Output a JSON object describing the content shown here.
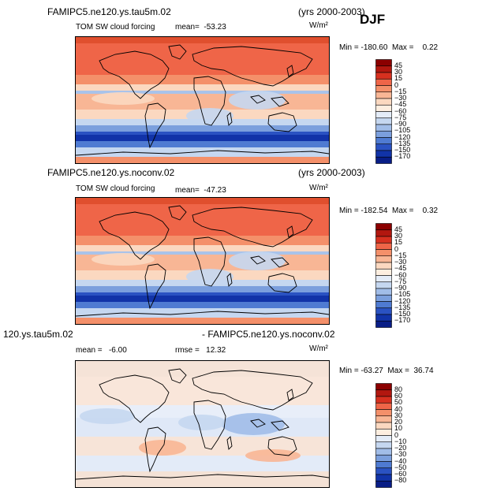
{
  "season": "DJF",
  "panels": [
    {
      "title_left": "FAMIPC5.ne120.ys.tau5m.02",
      "title_right": "(yrs 2000-2003)",
      "subtitle": "TOM SW cloud forcing",
      "stat1": "mean=  -53.23",
      "stat2": "",
      "units": "W/m²",
      "minmax": "Min = -180.60  Max =    0.22",
      "colorbar_labels": [
        "45",
        "30",
        "15",
        "0",
        "−15",
        "−30",
        "−45",
        "−60",
        "−75",
        "−90",
        "−105",
        "−120",
        "−135",
        "−150",
        "−170"
      ],
      "colorbar_colors": [
        "#8b0000",
        "#b2170f",
        "#d7301f",
        "#ef6548",
        "#f4906a",
        "#f8b695",
        "#fbd8c0",
        "#fdeee0",
        "#e4ecf8",
        "#c5d7f0",
        "#a1bde8",
        "#7b9fdd",
        "#4f7bd2",
        "#2a52c2",
        "#1133a8",
        "#081d86"
      ],
      "chart_data": {
        "type": "heatmap",
        "title": "TOM SW cloud forcing",
        "units": "W/m²",
        "mean": -53.23,
        "min": -180.6,
        "max": 0.22,
        "levels": [
          45,
          30,
          15,
          0,
          -15,
          -30,
          -45,
          -60,
          -75,
          -90,
          -105,
          -120,
          -135,
          -150,
          -170
        ]
      }
    },
    {
      "title_left": "FAMIPC5.ne120.ys.noconv.02",
      "title_right": "(yrs 2000-2003)",
      "subtitle": "TOM SW cloud forcing",
      "stat1": "mean=  -47.23",
      "stat2": "",
      "units": "W/m²",
      "minmax": "Min = -182.54  Max =    0.32",
      "colorbar_labels": [
        "45",
        "30",
        "15",
        "0",
        "−15",
        "−30",
        "−45",
        "−60",
        "−75",
        "−90",
        "−105",
        "−120",
        "−135",
        "−150",
        "−170"
      ],
      "colorbar_colors": [
        "#8b0000",
        "#b2170f",
        "#d7301f",
        "#ef6548",
        "#f4906a",
        "#f8b695",
        "#fbd8c0",
        "#fdeee0",
        "#e4ecf8",
        "#c5d7f0",
        "#a1bde8",
        "#7b9fdd",
        "#4f7bd2",
        "#2a52c2",
        "#1133a8",
        "#081d86"
      ],
      "chart_data": {
        "type": "heatmap",
        "title": "TOM SW cloud forcing",
        "units": "W/m²",
        "mean": -47.23,
        "min": -182.54,
        "max": 0.32,
        "levels": [
          45,
          30,
          15,
          0,
          -15,
          -30,
          -45,
          -60,
          -75,
          -90,
          -105,
          -120,
          -135,
          -150,
          -170
        ]
      }
    },
    {
      "title_left": "120.ys.tau5m.02",
      "title_right": "- FAMIPC5.ne120.ys.noconv.02",
      "subtitle": "",
      "stat1": "mean =   -6.00",
      "stat2": "rmse =   12.32",
      "units": "W/m²",
      "minmax": "Min = -63.27  Max =  36.74",
      "colorbar_labels": [
        "80",
        "60",
        "50",
        "40",
        "30",
        "20",
        "10",
        "0",
        "−10",
        "−20",
        "−30",
        "−40",
        "−50",
        "−60",
        "−80"
      ],
      "colorbar_colors": [
        "#8b0000",
        "#b2170f",
        "#d7301f",
        "#ef6548",
        "#f4906a",
        "#f8b695",
        "#fbd8c0",
        "#fdeee0",
        "#e4ecf8",
        "#c5d7f0",
        "#a1bde8",
        "#7b9fdd",
        "#4f7bd2",
        "#2a52c2",
        "#1133a8",
        "#081d86"
      ],
      "chart_data": {
        "type": "heatmap",
        "units": "W/m²",
        "mean": -6.0,
        "rmse": 12.32,
        "min": -63.27,
        "max": 36.74,
        "levels": [
          80,
          60,
          50,
          40,
          30,
          20,
          10,
          0,
          -10,
          -20,
          -30,
          -40,
          -50,
          -60,
          -80
        ]
      }
    }
  ]
}
